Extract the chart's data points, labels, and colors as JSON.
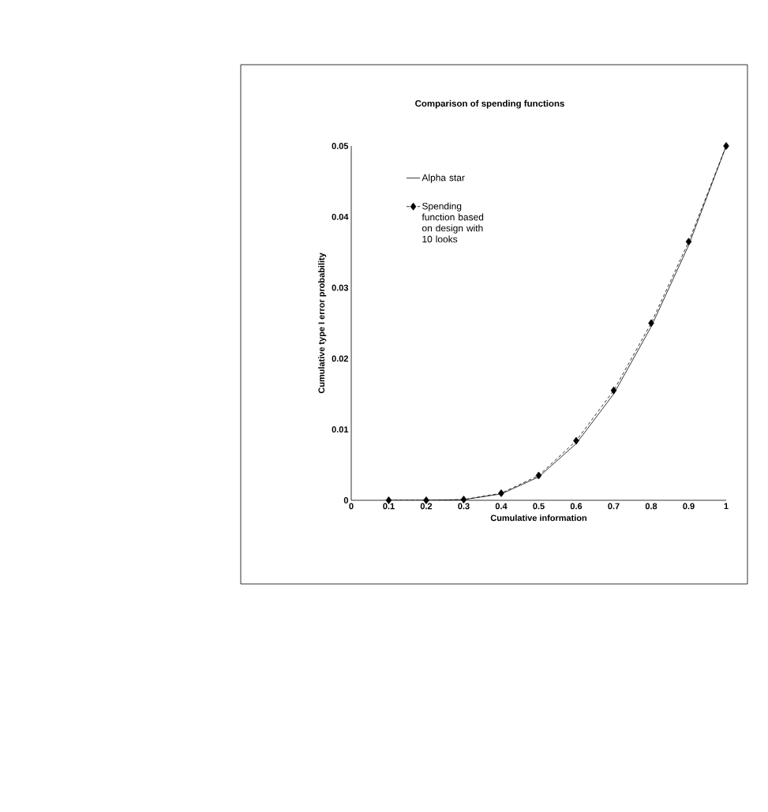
{
  "chart_data": {
    "type": "line",
    "title": "Comparison of spending functions",
    "xlabel": "Cumulative information",
    "ylabel": "Cumulative type I error probability",
    "x": [
      0.1,
      0.2,
      0.3,
      0.4,
      0.5,
      0.6,
      0.7,
      0.8,
      0.9,
      1
    ],
    "series": [
      {
        "name": "Alpha star",
        "color": "#000000",
        "line_style": "solid",
        "marker": "none",
        "values": [
          0,
          0,
          0.0001,
          0.0009,
          0.0033,
          0.008,
          0.015,
          0.0245,
          0.036,
          0.05
        ]
      },
      {
        "name": "Spending function based on design with 10 looks",
        "color": "#000000",
        "line_style": "dashed",
        "marker": "diamond",
        "values": [
          0,
          0,
          0.0001,
          0.001,
          0.0035,
          0.0084,
          0.0155,
          0.025,
          0.0365,
          0.05
        ]
      }
    ],
    "xlim": [
      0,
      1
    ],
    "xticks": [
      0,
      0.1,
      0.2,
      0.3,
      0.4,
      0.5,
      0.6,
      0.7,
      0.8,
      0.9,
      1
    ],
    "ylim": [
      0,
      0.05
    ],
    "yticks": [
      0,
      0.01,
      0.02,
      0.03,
      0.04,
      0.05
    ],
    "grid": false,
    "legend": "top left"
  }
}
